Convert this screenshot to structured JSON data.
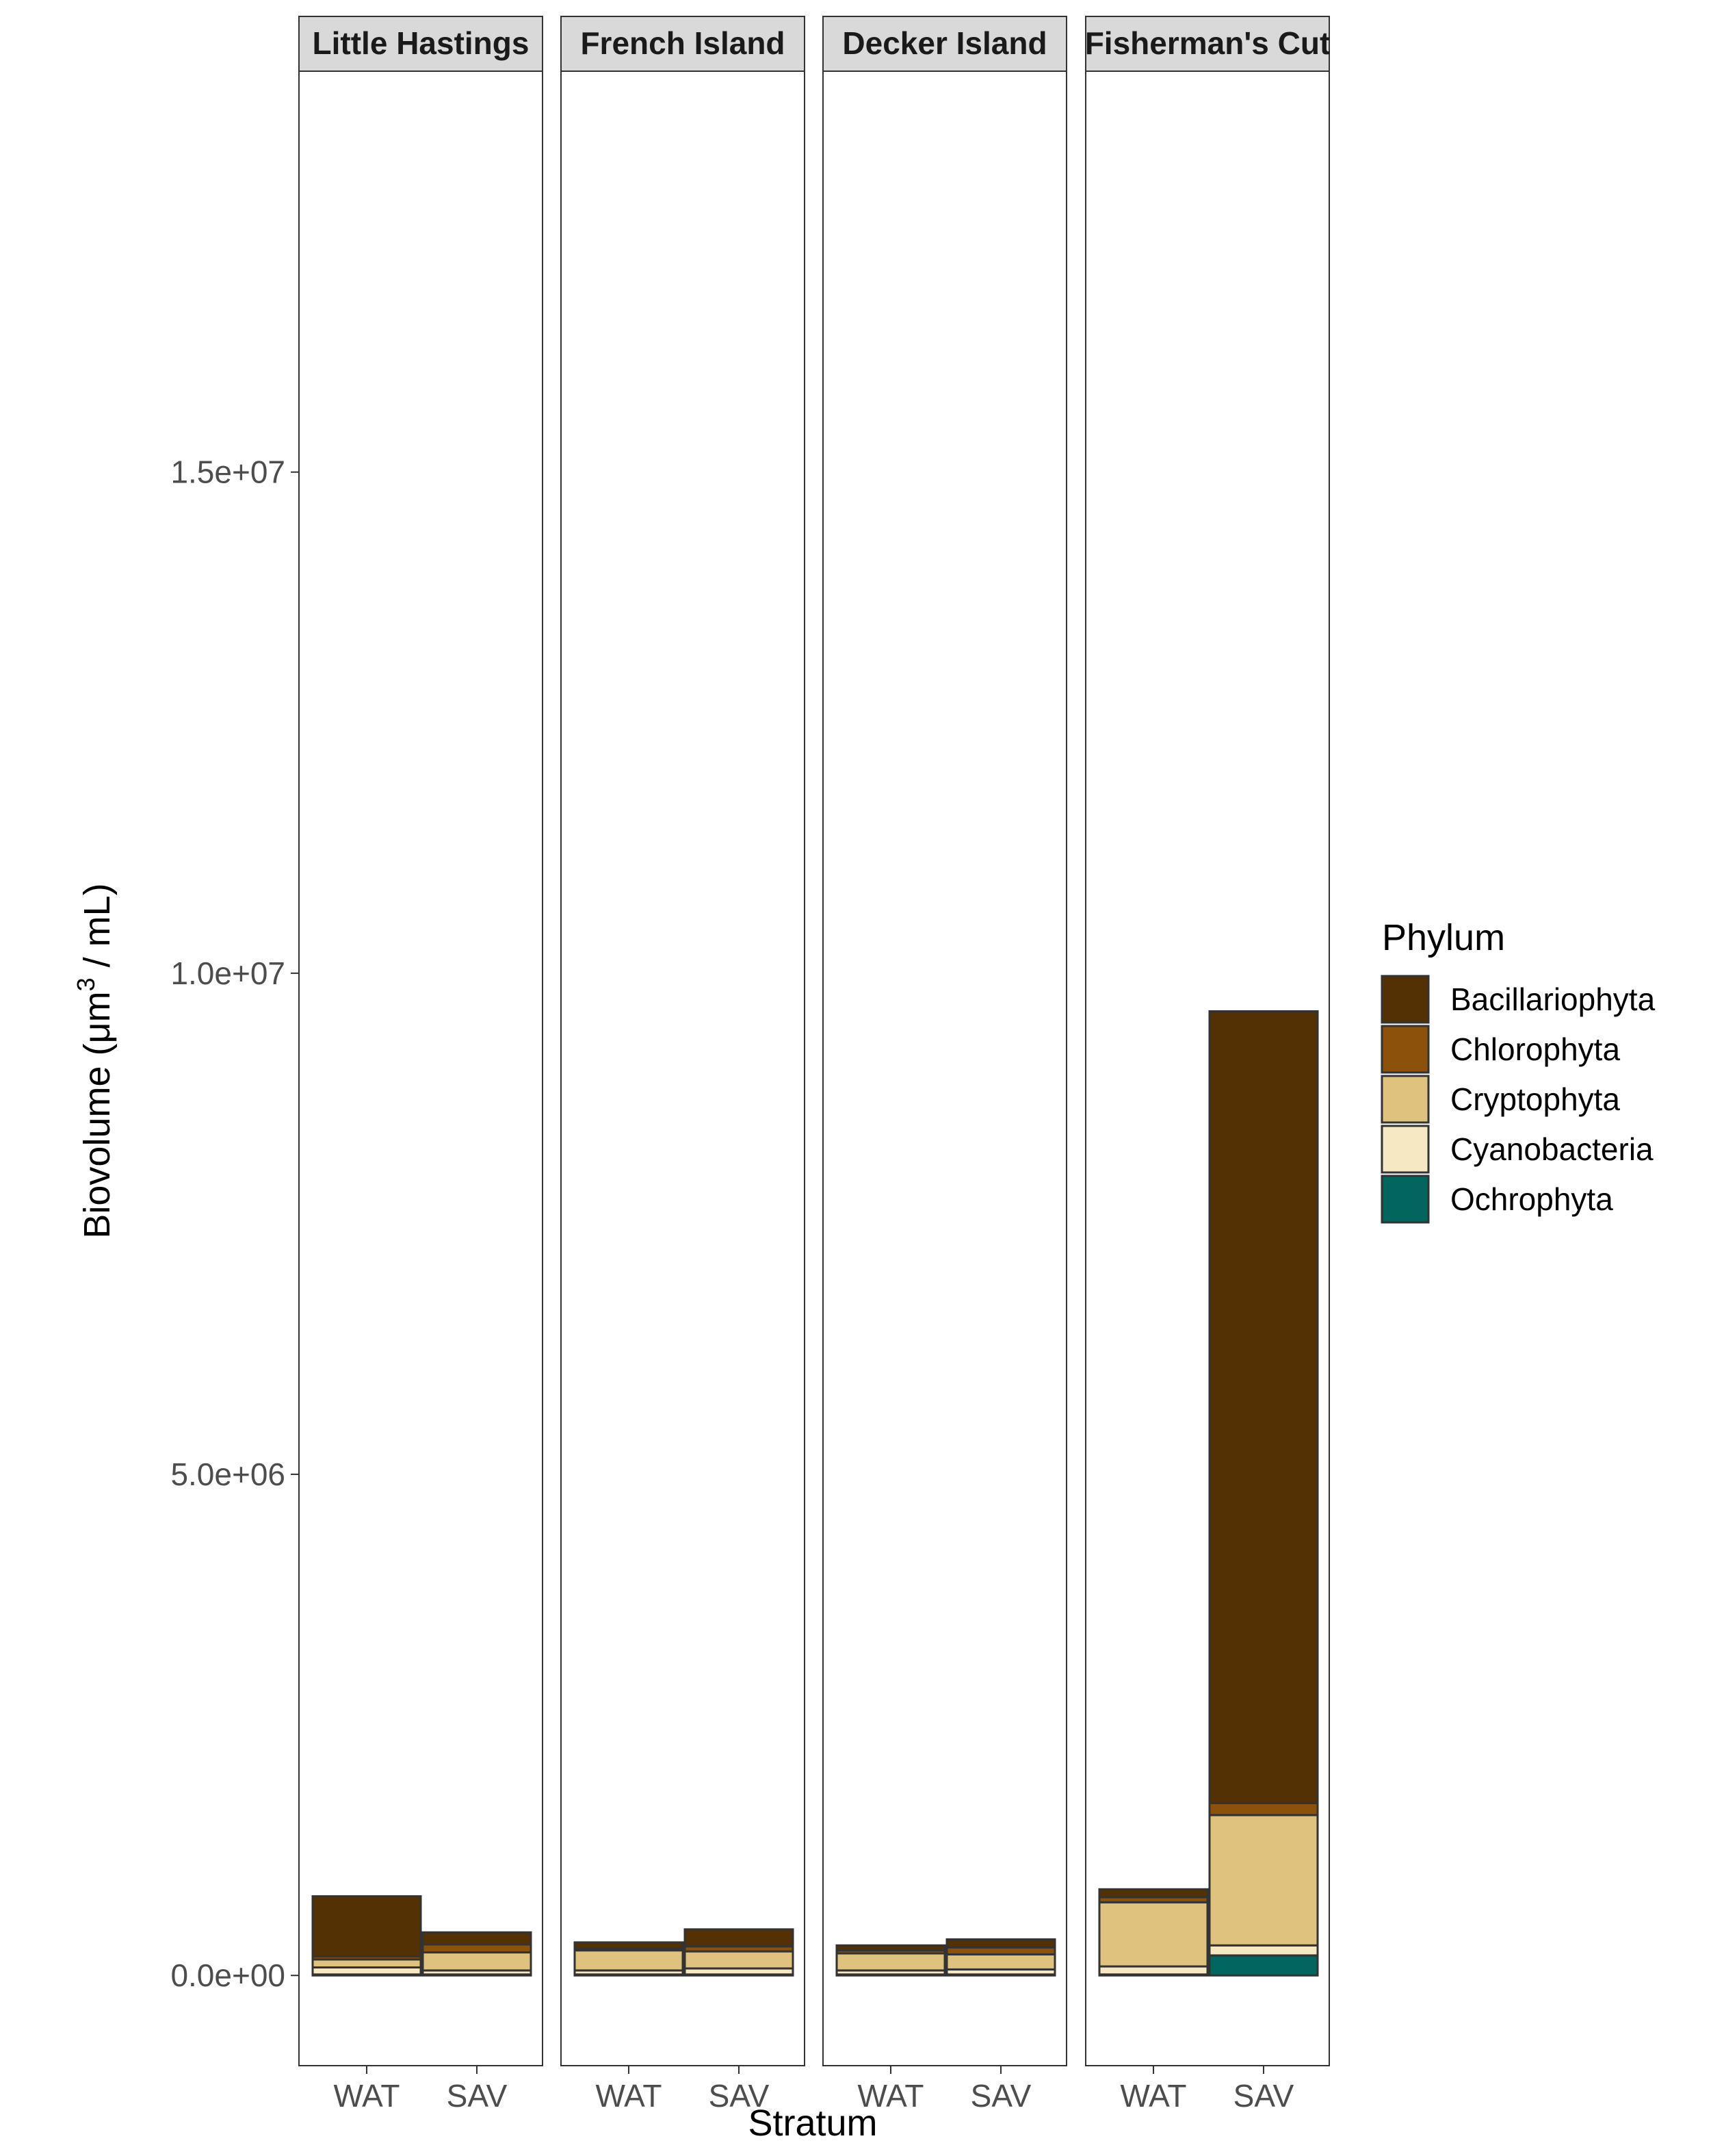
{
  "chart_data": {
    "type": "bar",
    "stacked": true,
    "facets": [
      "Little Hastings",
      "French Island",
      "Decker Island",
      "Fisherman's Cut"
    ],
    "categories": [
      "WAT",
      "SAV"
    ],
    "xlabel": "Stratum",
    "ylabel_prefix": "Biovolume (μm",
    "ylabel_superscript": "3",
    "ylabel_suffix": " / mL)",
    "ylim": [
      -900000,
      19000000
    ],
    "yticks": [
      0,
      5000000,
      10000000,
      15000000
    ],
    "ytick_labels": [
      "0.0e+00",
      "5.0e+06",
      "1.0e+07",
      "1.5e+07"
    ],
    "legend_title": "Phylum",
    "legend_position": "right",
    "grid": false,
    "series": [
      {
        "name": "Bacillariophyta",
        "color": "#543005",
        "values": [
          [
            600000,
            120000
          ],
          [
            60000,
            170000
          ],
          [
            50000,
            80000
          ],
          [
            80000,
            7900000
          ]
        ]
      },
      {
        "name": "Chlorophyta",
        "color": "#8C510A",
        "values": [
          [
            30000,
            80000
          ],
          [
            20000,
            50000
          ],
          [
            30000,
            70000
          ],
          [
            50000,
            120000
          ]
        ]
      },
      {
        "name": "Cryptophyta",
        "color": "#DFC27D",
        "values": [
          [
            80000,
            180000
          ],
          [
            200000,
            170000
          ],
          [
            170000,
            150000
          ],
          [
            640000,
            1300000
          ]
        ]
      },
      {
        "name": "Cyanobacteria",
        "color": "#F6E8C3",
        "values": [
          [
            70000,
            40000
          ],
          [
            40000,
            60000
          ],
          [
            40000,
            50000
          ],
          [
            80000,
            100000
          ]
        ]
      },
      {
        "name": "Ochrophyta",
        "color": "#01665E",
        "values": [
          [
            10000,
            10000
          ],
          [
            10000,
            10000
          ],
          [
            10000,
            10000
          ],
          [
            10000,
            200000
          ]
        ]
      }
    ]
  }
}
